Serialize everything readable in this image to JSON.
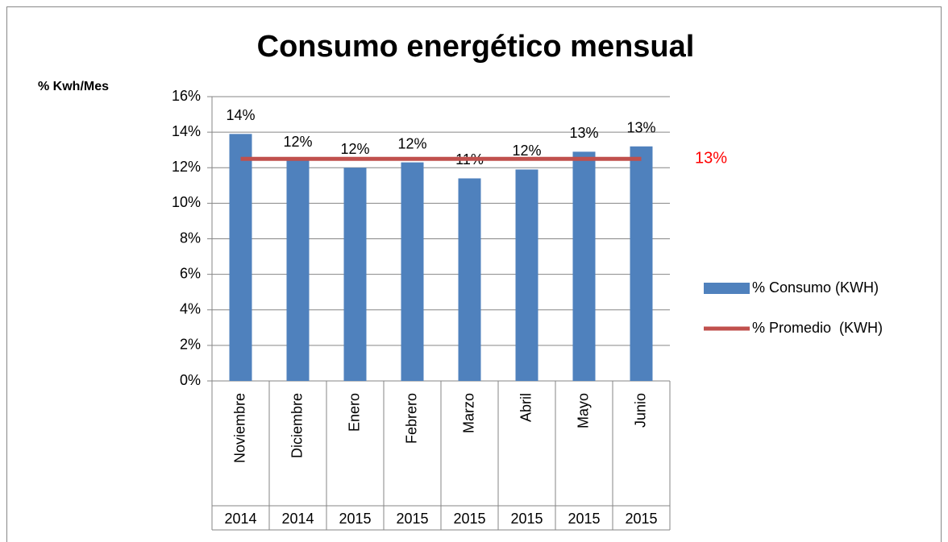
{
  "chart_data": {
    "type": "bar",
    "title": "Consumo energético mensual",
    "y_axis_label": "% Kwh/Mes",
    "categories": [
      "Noviembre",
      "Diciembre",
      "Enero",
      "Febrero",
      "Marzo",
      "Abril",
      "Mayo",
      "Junio"
    ],
    "years": [
      "2014",
      "2014",
      "2015",
      "2015",
      "2015",
      "2015",
      "2015",
      "2015"
    ],
    "ylim": [
      0,
      16
    ],
    "yticks": [
      {
        "value": 0,
        "label": "0%"
      },
      {
        "value": 2,
        "label": "2%"
      },
      {
        "value": 4,
        "label": "4%"
      },
      {
        "value": 6,
        "label": "6%"
      },
      {
        "value": 8,
        "label": "8%"
      },
      {
        "value": 10,
        "label": "10%"
      },
      {
        "value": 12,
        "label": "12%"
      },
      {
        "value": 14,
        "label": "14%"
      },
      {
        "value": 16,
        "label": "16%"
      }
    ],
    "grid": true,
    "legend": "right",
    "series": [
      {
        "name": "% Consumo (KWH)",
        "type": "bar",
        "color": "#4f81bd",
        "values": [
          13.9,
          12.4,
          12.0,
          12.3,
          11.4,
          11.9,
          12.9,
          13.2
        ],
        "value_labels": [
          "14%",
          "12%",
          "12%",
          "12%",
          "11%",
          "12%",
          "13%",
          "13%"
        ]
      },
      {
        "name": "% Promedio  (KWH)",
        "type": "line",
        "color": "#c0504d",
        "values": [
          12.5,
          12.5,
          12.5,
          12.5,
          12.5,
          12.5,
          12.5,
          12.5
        ],
        "end_label": "13%"
      }
    ]
  }
}
